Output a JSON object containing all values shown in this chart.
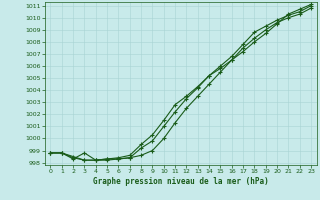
{
  "xlabel": "Graphe pression niveau de la mer (hPa)",
  "xlim": [
    -0.5,
    23.5
  ],
  "ylim": [
    997.8,
    1011.3
  ],
  "yticks": [
    998,
    999,
    1000,
    1001,
    1002,
    1003,
    1004,
    1005,
    1006,
    1007,
    1008,
    1009,
    1010,
    1011
  ],
  "xticks": [
    0,
    1,
    2,
    3,
    4,
    5,
    6,
    7,
    8,
    9,
    10,
    11,
    12,
    13,
    14,
    15,
    16,
    17,
    18,
    19,
    20,
    21,
    22,
    23
  ],
  "background_color": "#c8eaea",
  "line_color": "#1a5c1a",
  "line1_y": [
    998.8,
    998.8,
    998.3,
    998.8,
    998.2,
    998.2,
    998.3,
    998.4,
    999.2,
    999.8,
    1001.0,
    1002.2,
    1003.3,
    1004.2,
    1005.2,
    1006.0,
    1006.8,
    1007.8,
    1008.8,
    1009.3,
    1009.8,
    1010.2,
    1010.5,
    1011.0
  ],
  "line2_y": [
    998.8,
    998.8,
    998.4,
    998.2,
    998.2,
    998.3,
    998.3,
    998.4,
    998.6,
    999.0,
    1000.0,
    1001.3,
    1002.5,
    1003.5,
    1004.5,
    1005.5,
    1006.5,
    1007.5,
    1008.3,
    1009.0,
    1009.6,
    1010.0,
    1010.3,
    1010.8
  ],
  "line3_y": [
    998.8,
    998.8,
    998.5,
    998.2,
    998.2,
    998.3,
    998.4,
    998.6,
    999.5,
    1000.3,
    1001.5,
    1002.8,
    1003.5,
    1004.3,
    1005.2,
    1005.8,
    1006.5,
    1007.2,
    1008.0,
    1008.7,
    1009.5,
    1010.3,
    1010.7,
    1011.1
  ]
}
